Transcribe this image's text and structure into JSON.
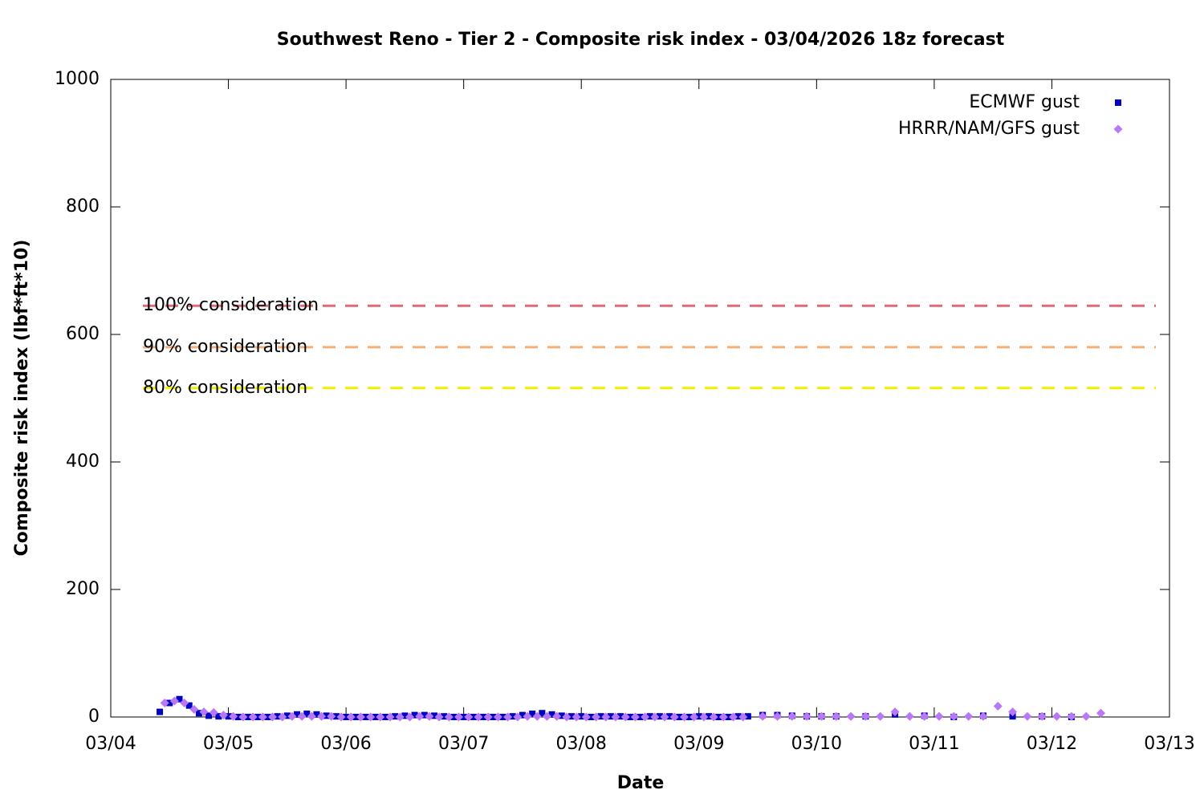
{
  "chart_data": {
    "type": "scatter",
    "title": "Southwest Reno - Tier 2 - Composite risk index - 03/04/2026 18z forecast",
    "x_label": "Date",
    "y_label": "Composite risk index (lbf*ft*10)",
    "xlim": [
      0,
      216
    ],
    "xticks": [
      {
        "value": 0,
        "label": "03/04"
      },
      {
        "value": 24,
        "label": "03/05"
      },
      {
        "value": 48,
        "label": "03/06"
      },
      {
        "value": 72,
        "label": "03/07"
      },
      {
        "value": 96,
        "label": "03/08"
      },
      {
        "value": 120,
        "label": "03/09"
      },
      {
        "value": 144,
        "label": "03/10"
      },
      {
        "value": 168,
        "label": "03/11"
      },
      {
        "value": 192,
        "label": "03/12"
      },
      {
        "value": 216,
        "label": "03/13"
      }
    ],
    "ylim": [
      0,
      1000
    ],
    "yticks": [
      0,
      200,
      400,
      600,
      800,
      1000
    ],
    "legend": "top-right",
    "series": [
      {
        "name": "ECMWF gust",
        "color": "#0000c0",
        "marker": "square",
        "x": [
          10,
          12,
          14,
          16,
          18,
          20,
          22,
          24,
          26,
          28,
          30,
          32,
          34,
          36,
          38,
          40,
          42,
          44,
          46,
          48,
          50,
          52,
          54,
          56,
          58,
          60,
          62,
          64,
          66,
          68,
          70,
          72,
          74,
          76,
          78,
          80,
          82,
          84,
          86,
          88,
          90,
          92,
          94,
          96,
          98,
          100,
          102,
          104,
          106,
          108,
          110,
          112,
          114,
          116,
          118,
          120,
          122,
          124,
          126,
          128,
          130,
          133,
          136,
          139,
          142,
          145,
          148,
          154,
          160,
          166,
          172,
          178,
          184,
          190,
          196
        ],
        "values": [
          8,
          22,
          28,
          18,
          6,
          2,
          1,
          1,
          0,
          0,
          0,
          0,
          1,
          2,
          4,
          5,
          4,
          2,
          1,
          0,
          0,
          0,
          0,
          0,
          1,
          2,
          3,
          3,
          2,
          1,
          0,
          0,
          0,
          0,
          0,
          0,
          1,
          3,
          5,
          6,
          4,
          2,
          1,
          1,
          0,
          1,
          1,
          1,
          0,
          0,
          1,
          1,
          1,
          0,
          0,
          1,
          1,
          0,
          0,
          1,
          1,
          3,
          3,
          2,
          1,
          1,
          1,
          1,
          4,
          2,
          0,
          2,
          1,
          1,
          0
        ]
      },
      {
        "name": "HRRR/NAM/GFS gust",
        "color": "#b878f8",
        "marker": "diamond",
        "x": [
          11,
          13,
          15,
          17,
          19,
          21,
          23,
          25,
          27,
          29,
          31,
          33,
          35,
          37,
          39,
          41,
          43,
          45,
          47,
          49,
          51,
          53,
          55,
          57,
          59,
          61,
          63,
          65,
          67,
          69,
          71,
          73,
          75,
          77,
          79,
          81,
          83,
          85,
          87,
          89,
          91,
          93,
          95,
          97,
          99,
          101,
          103,
          105,
          107,
          109,
          111,
          113,
          115,
          117,
          119,
          121,
          123,
          125,
          127,
          129,
          133,
          136,
          139,
          142,
          145,
          148,
          151,
          154,
          157,
          160,
          163,
          166,
          169,
          172,
          175,
          178,
          181,
          184,
          187,
          190,
          193,
          196,
          199,
          202
        ],
        "values": [
          22,
          25,
          22,
          12,
          8,
          7,
          3,
          1,
          0,
          0,
          0,
          0,
          0,
          1,
          1,
          1,
          1,
          1,
          0,
          0,
          0,
          0,
          0,
          0,
          0,
          0,
          1,
          1,
          0,
          0,
          0,
          0,
          0,
          0,
          0,
          0,
          0,
          1,
          1,
          1,
          1,
          0,
          0,
          0,
          0,
          0,
          0,
          0,
          0,
          0,
          0,
          0,
          0,
          0,
          0,
          0,
          0,
          0,
          0,
          0,
          1,
          1,
          1,
          1,
          1,
          1,
          1,
          1,
          1,
          8,
          1,
          1,
          1,
          1,
          1,
          1,
          17,
          8,
          1,
          1,
          1,
          1,
          1,
          6
        ]
      }
    ],
    "reference_lines": [
      {
        "label": "100% consideration",
        "value": 645,
        "color": "#e06878"
      },
      {
        "label": "90% consideration",
        "value": 580,
        "color": "#f4b078"
      },
      {
        "label": "80% consideration",
        "value": 516,
        "color": "#f0f000"
      }
    ]
  }
}
